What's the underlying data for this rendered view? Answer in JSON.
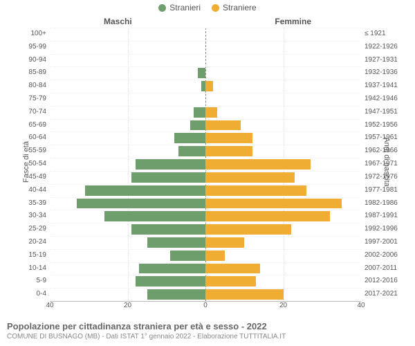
{
  "legend": {
    "male_label": "Stranieri",
    "female_label": "Straniere"
  },
  "sides": {
    "male": "Maschi",
    "female": "Femmine"
  },
  "axis_labels": {
    "left": "Fasce di età",
    "right": "Anni di nascita"
  },
  "colors": {
    "male": "#6e9e6b",
    "female": "#f0ad33",
    "background": "#ffffff",
    "grid": "#dddddd"
  },
  "chart": {
    "type": "population-pyramid",
    "xmax": 40,
    "xticks": [
      40,
      20,
      0,
      20,
      40
    ],
    "rows": [
      {
        "age": "100+",
        "birth": "≤ 1921",
        "m": 0,
        "f": 0
      },
      {
        "age": "95-99",
        "birth": "1922-1926",
        "m": 0,
        "f": 0
      },
      {
        "age": "90-94",
        "birth": "1927-1931",
        "m": 0,
        "f": 0
      },
      {
        "age": "85-89",
        "birth": "1932-1936",
        "m": 2,
        "f": 0
      },
      {
        "age": "80-84",
        "birth": "1937-1941",
        "m": 1,
        "f": 2
      },
      {
        "age": "75-79",
        "birth": "1942-1946",
        "m": 0,
        "f": 0
      },
      {
        "age": "70-74",
        "birth": "1947-1951",
        "m": 3,
        "f": 3
      },
      {
        "age": "65-69",
        "birth": "1952-1956",
        "m": 4,
        "f": 9
      },
      {
        "age": "60-64",
        "birth": "1957-1961",
        "m": 8,
        "f": 12
      },
      {
        "age": "55-59",
        "birth": "1962-1966",
        "m": 7,
        "f": 12
      },
      {
        "age": "50-54",
        "birth": "1967-1971",
        "m": 18,
        "f": 27
      },
      {
        "age": "45-49",
        "birth": "1972-1976",
        "m": 19,
        "f": 23
      },
      {
        "age": "40-44",
        "birth": "1977-1981",
        "m": 31,
        "f": 26
      },
      {
        "age": "35-39",
        "birth": "1982-1986",
        "m": 33,
        "f": 35
      },
      {
        "age": "30-34",
        "birth": "1987-1991",
        "m": 26,
        "f": 32
      },
      {
        "age": "25-29",
        "birth": "1992-1996",
        "m": 19,
        "f": 22
      },
      {
        "age": "20-24",
        "birth": "1997-2001",
        "m": 15,
        "f": 10
      },
      {
        "age": "15-19",
        "birth": "2002-2006",
        "m": 9,
        "f": 5
      },
      {
        "age": "10-14",
        "birth": "2007-2011",
        "m": 17,
        "f": 14
      },
      {
        "age": "5-9",
        "birth": "2012-2016",
        "m": 18,
        "f": 13
      },
      {
        "age": "0-4",
        "birth": "2017-2021",
        "m": 15,
        "f": 20
      }
    ]
  },
  "footer": {
    "title": "Popolazione per cittadinanza straniera per età e sesso - 2022",
    "subtitle": "COMUNE DI BUSNAGO (MB) - Dati ISTAT 1° gennaio 2022 - Elaborazione TUTTITALIA.IT"
  }
}
